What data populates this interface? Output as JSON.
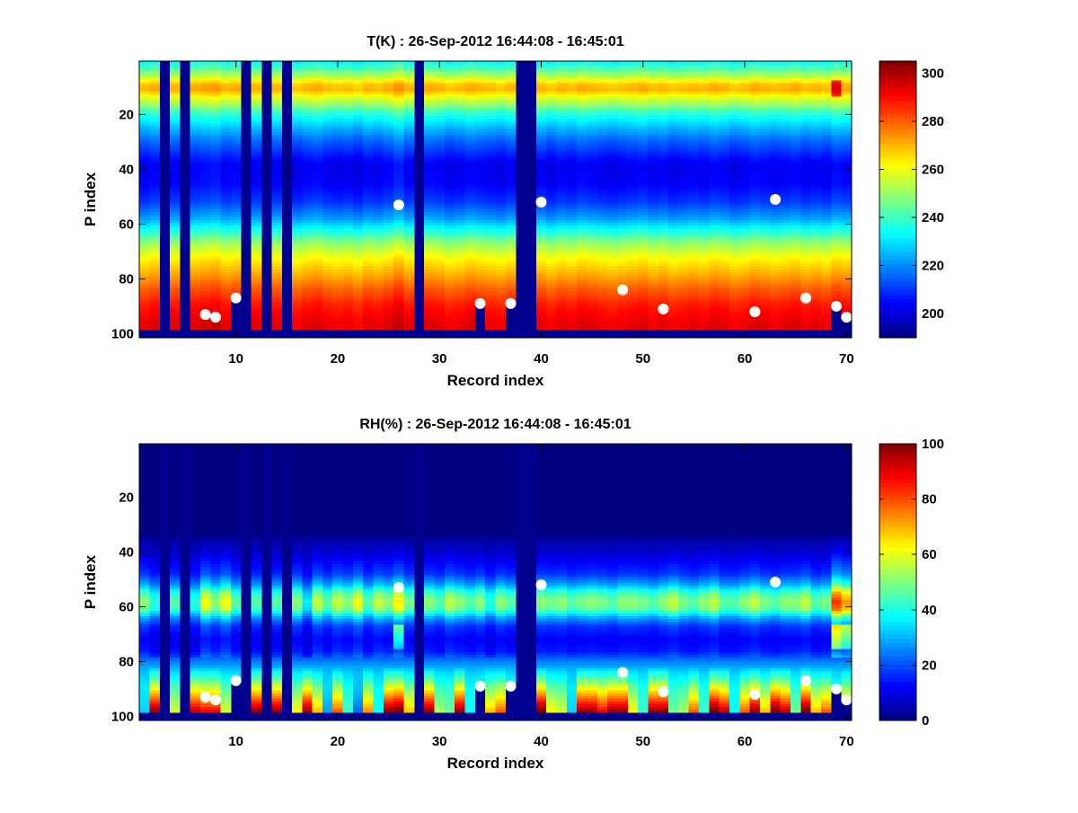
{
  "chart_data": [
    {
      "type": "heatmap",
      "title": "T(K) : 26-Sep-2012 16:44:08 - 16:45:01",
      "xlabel": "Record index",
      "ylabel": "P index",
      "xlim": [
        0.5,
        70.5
      ],
      "ylim": [
        0.5,
        101.5
      ],
      "y_reversed": true,
      "xticks": [
        "10",
        "20",
        "30",
        "40",
        "50",
        "60",
        "70"
      ],
      "yticks": [
        "20",
        "40",
        "60",
        "80",
        "100"
      ],
      "n_records": 70,
      "n_levels": 100,
      "valid_levels_max": 98,
      "colorbar": {
        "clim": [
          190,
          305
        ],
        "ticks": [
          "200",
          "220",
          "240",
          "260",
          "280",
          "300"
        ],
        "colormap": "jet"
      },
      "profile_knots": [
        [
          1,
          233
        ],
        [
          5,
          248
        ],
        [
          9,
          268
        ],
        [
          11,
          270
        ],
        [
          14,
          258
        ],
        [
          20,
          236
        ],
        [
          28,
          218
        ],
        [
          38,
          202
        ],
        [
          45,
          203
        ],
        [
          52,
          210
        ],
        [
          58,
          222
        ],
        [
          63,
          237
        ],
        [
          68,
          252
        ],
        [
          73,
          262
        ],
        [
          78,
          270
        ],
        [
          84,
          280
        ],
        [
          90,
          288
        ],
        [
          97,
          293
        ],
        [
          98,
          292
        ]
      ],
      "column_offsets": [
        0,
        2,
        0,
        1,
        0,
        2,
        3,
        4,
        1,
        2,
        0,
        1,
        0,
        1,
        0,
        -1,
        1,
        2,
        0,
        -1,
        0,
        -2,
        1,
        0,
        2,
        5,
        1,
        0,
        2,
        1,
        -1,
        0,
        2,
        1,
        0,
        -1,
        1,
        0,
        0,
        1,
        -1,
        1,
        0,
        2,
        1,
        0,
        -1,
        0,
        1,
        2,
        0,
        1,
        -1,
        0,
        1,
        0,
        2,
        1,
        -1,
        0,
        2,
        1,
        0,
        1,
        2,
        0,
        1,
        0,
        3,
        2
      ],
      "anomalies": [
        {
          "record": 69,
          "levels": [
            8,
            13
          ],
          "delta": 22
        }
      ],
      "missing_records": [
        3,
        5,
        11,
        13,
        15,
        28,
        38,
        39
      ],
      "truncated_records": [
        {
          "record": 10,
          "last_level": 87
        },
        {
          "record": 34,
          "last_level": 89
        },
        {
          "record": 37,
          "last_level": 89
        },
        {
          "record": 69,
          "last_level": 90
        },
        {
          "record": 70,
          "last_level": 94
        }
      ],
      "markers": [
        [
          7,
          93
        ],
        [
          8,
          94
        ],
        [
          10,
          87
        ],
        [
          26,
          53
        ],
        [
          34,
          89
        ],
        [
          37,
          89
        ],
        [
          40,
          52
        ],
        [
          48,
          84
        ],
        [
          52,
          91
        ],
        [
          61,
          92
        ],
        [
          63,
          51
        ],
        [
          66,
          87
        ],
        [
          69,
          90
        ],
        [
          70,
          94
        ]
      ]
    },
    {
      "type": "heatmap",
      "title": "RH(%) : 26-Sep-2012 16:44:08 - 16:45:01",
      "xlabel": "Record index",
      "ylabel": "P index",
      "xlim": [
        0.5,
        70.5
      ],
      "ylim": [
        0.5,
        101.5
      ],
      "y_reversed": true,
      "xticks": [
        "10",
        "20",
        "30",
        "40",
        "50",
        "60",
        "70"
      ],
      "yticks": [
        "20",
        "40",
        "60",
        "80",
        "100"
      ],
      "n_records": 70,
      "n_levels": 100,
      "valid_levels_max": 98,
      "colorbar": {
        "clim": [
          0,
          100
        ],
        "ticks": [
          "0",
          "20",
          "40",
          "60",
          "80",
          "100"
        ],
        "colormap": "jet"
      },
      "profile_knots": [
        [
          1,
          0
        ],
        [
          33,
          0
        ],
        [
          36,
          4
        ],
        [
          42,
          10
        ],
        [
          48,
          18
        ],
        [
          52,
          30
        ],
        [
          55,
          45
        ],
        [
          58,
          52
        ],
        [
          61,
          48
        ],
        [
          64,
          30
        ],
        [
          67,
          18
        ],
        [
          72,
          12
        ],
        [
          76,
          15
        ],
        [
          80,
          25
        ],
        [
          85,
          35
        ],
        [
          90,
          42
        ],
        [
          98,
          48
        ]
      ],
      "column_mid_band": [
        50,
        40,
        0,
        45,
        0,
        40,
        60,
        50,
        60,
        45,
        0,
        45,
        0,
        45,
        0,
        50,
        35,
        55,
        45,
        55,
        50,
        60,
        45,
        55,
        50,
        62,
        48,
        0,
        50,
        45,
        55,
        50,
        45,
        50,
        40,
        50,
        45,
        0,
        0,
        50,
        48,
        50,
        45,
        48,
        50,
        48,
        45,
        50,
        50,
        48,
        45,
        50,
        55,
        48,
        45,
        50,
        55,
        45,
        45,
        50,
        55,
        48,
        45,
        50,
        50,
        55,
        45,
        48,
        80,
        70
      ],
      "column_surface_rh": [
        30,
        95,
        0,
        55,
        0,
        90,
        85,
        85,
        55,
        50,
        0,
        95,
        0,
        95,
        0,
        60,
        95,
        65,
        25,
        75,
        40,
        20,
        70,
        35,
        95,
        100,
        65,
        0,
        95,
        50,
        45,
        95,
        35,
        40,
        65,
        75,
        40,
        0,
        0,
        100,
        60,
        55,
        30,
        95,
        95,
        85,
        95,
        95,
        60,
        40,
        95,
        95,
        45,
        50,
        75,
        40,
        100,
        90,
        35,
        75,
        95,
        65,
        100,
        90,
        45,
        100,
        65,
        75,
        40,
        70
      ],
      "missing_records": [
        3,
        5,
        11,
        13,
        15,
        28,
        38,
        39
      ],
      "truncated_records": [
        {
          "record": 10,
          "last_level": 87
        },
        {
          "record": 34,
          "last_level": 89
        },
        {
          "record": 37,
          "last_level": 89
        },
        {
          "record": 69,
          "last_level": 90
        },
        {
          "record": 70,
          "last_level": 94
        }
      ],
      "markers": [
        [
          7,
          93
        ],
        [
          8,
          94
        ],
        [
          10,
          87
        ],
        [
          26,
          53
        ],
        [
          34,
          89
        ],
        [
          37,
          89
        ],
        [
          40,
          52
        ],
        [
          48,
          84
        ],
        [
          52,
          91
        ],
        [
          61,
          92
        ],
        [
          63,
          51
        ],
        [
          66,
          87
        ],
        [
          69,
          90
        ],
        [
          70,
          94
        ]
      ]
    }
  ]
}
